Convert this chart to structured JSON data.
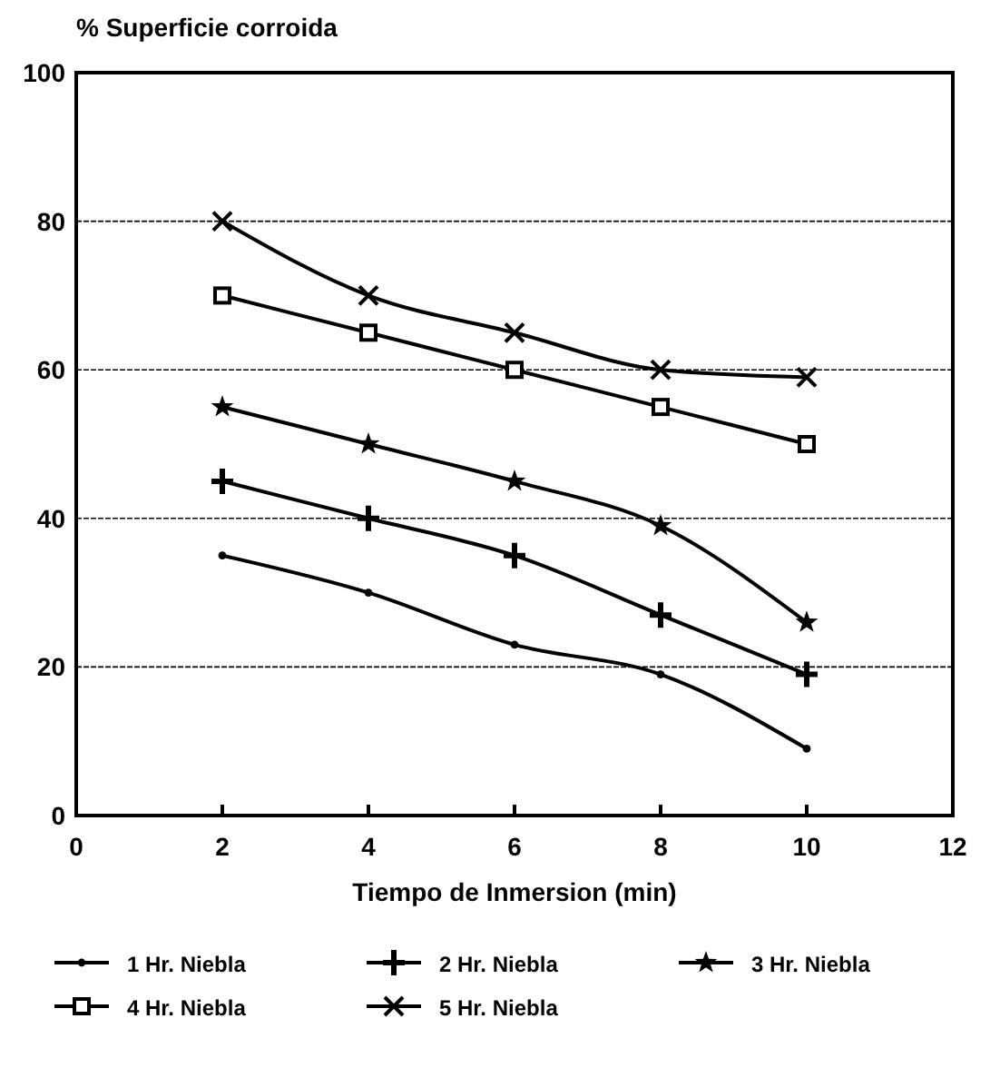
{
  "chart_data": {
    "type": "line",
    "title": "% Superficie corroida",
    "xlabel": "Tiempo de Inmersion (min)",
    "x": [
      2,
      4,
      6,
      8,
      10
    ],
    "xlim": [
      0,
      12
    ],
    "xticks": [
      0,
      2,
      4,
      6,
      8,
      10,
      12
    ],
    "ylim": [
      0,
      100
    ],
    "yticks": [
      0,
      20,
      40,
      60,
      80,
      100
    ],
    "grid": "y",
    "legend": "bottom",
    "series": [
      {
        "name": "1 Hr. Niebla",
        "color": "#000000",
        "marker": "circle",
        "values": [
          35,
          30,
          23,
          19,
          9
        ]
      },
      {
        "name": "2 Hr. Niebla",
        "color": "#000000",
        "marker": "plus",
        "values": [
          45,
          40,
          35,
          27,
          19
        ]
      },
      {
        "name": "3 Hr. Niebla",
        "color": "#000000",
        "marker": "star",
        "values": [
          55,
          50,
          45,
          39,
          26
        ]
      },
      {
        "name": "4 Hr. Niebla",
        "color": "#000000",
        "marker": "square",
        "values": [
          70,
          65,
          60,
          55,
          50
        ]
      },
      {
        "name": "5 Hr. Niebla",
        "color": "#000000",
        "marker": "cross",
        "values": [
          80,
          70,
          65,
          60,
          59
        ]
      }
    ]
  }
}
